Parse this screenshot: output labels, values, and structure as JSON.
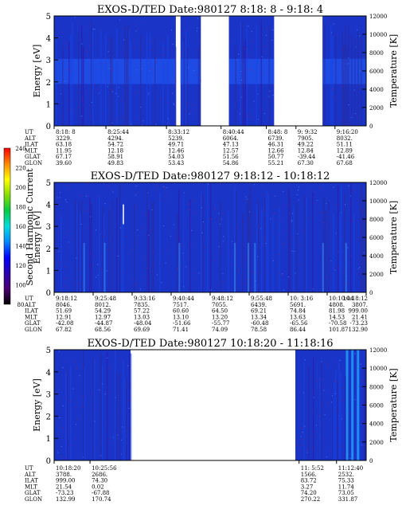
{
  "chart_data": [
    {
      "type": "heatmap",
      "title": "EXOS-D/TED   Date:980127  8:18: 8 - 9:18: 4",
      "ylabel": "Energy [eV]",
      "y2label": "Temperature [K]",
      "ylim": [
        0,
        5
      ],
      "y2lim": [
        0,
        12000
      ],
      "yticks": [
        "0",
        "1",
        "2",
        "3",
        "4",
        "5"
      ],
      "y2ticks": [
        "0",
        "2000",
        "4000",
        "6000",
        "8000",
        "10000",
        "12000"
      ],
      "row_labels": [
        "UT",
        "ALT",
        "ILAT",
        "MLT",
        "GLAT",
        "GLON"
      ],
      "columns": [
        {
          "x": 0.0,
          "values": [
            "8:18: 8",
            "3229.",
            "63.18",
            "11.95",
            "67.17",
            "39.60"
          ]
        },
        {
          "x": 0.166,
          "values": [
            "8:25:44",
            "4294.",
            "54.72",
            "12.18",
            "58.91",
            "49.83"
          ]
        },
        {
          "x": 0.36,
          "values": [
            "8:33:12",
            "5239.",
            "49.71",
            "12.46",
            "54.03",
            "53.43"
          ]
        },
        {
          "x": 0.535,
          "values": [
            "8:40:44",
            "6064.",
            "47.13",
            "12.57",
            "51.56",
            "54.86"
          ]
        },
        {
          "x": 0.68,
          "values": [
            "8:48: 8",
            "6739.",
            "46.31",
            "12.66",
            "50.77",
            "55.21"
          ]
        },
        {
          "x": 0.775,
          "values": [
            "9: 9:32",
            "7905.",
            "49.22",
            "12.84",
            "-39.44",
            "67.30"
          ]
        },
        {
          "x": 0.9,
          "values": [
            "9:16:20",
            "8032.",
            "51.11",
            "12.89",
            "-41.46",
            "67.68"
          ]
        }
      ],
      "data_segments": [
        [
          0.0,
          0.39
        ],
        [
          0.405,
          0.47
        ],
        [
          0.56,
          0.705
        ],
        [
          0.86,
          1.0
        ]
      ]
    },
    {
      "type": "heatmap",
      "title": "EXOS-D/TED   Date:980127  9:18:12 - 10:18:12",
      "ylabel": "Energy [eV]",
      "y2label": "Temperature [K]",
      "ylim": [
        0,
        5
      ],
      "y2lim": [
        0,
        12000
      ],
      "yticks": [
        "0",
        "1",
        "2",
        "3",
        "4",
        "5"
      ],
      "y2ticks": [
        "0",
        "2000",
        "4000",
        "6000",
        "8000",
        "10000",
        "12000"
      ],
      "row_labels": [
        "UT",
        "ALT",
        "ILAT",
        "MLT",
        "GLAT",
        "GLON"
      ],
      "columns": [
        {
          "x": 0.0,
          "values": [
            "9:18:12",
            "8046.",
            "51.69",
            "12.91",
            "-42.08",
            "67.82"
          ]
        },
        {
          "x": 0.125,
          "values": [
            "9:25:48",
            "8012.",
            "54.29",
            "12.97",
            "-44.87",
            "68.56"
          ]
        },
        {
          "x": 0.25,
          "values": [
            "9:33:16",
            "7835.",
            "57.22",
            "13.03",
            "-48.04",
            "69.69"
          ]
        },
        {
          "x": 0.375,
          "values": [
            "9:40:44",
            "7517.",
            "60.60",
            "13.10",
            "-51.66",
            "71.41"
          ]
        },
        {
          "x": 0.5,
          "values": [
            "9:48:12",
            "7055.",
            "64.50",
            "13.20",
            "-55.77",
            "74.09"
          ]
        },
        {
          "x": 0.625,
          "values": [
            "9:55:48",
            "6439.",
            "69.21",
            "13.34",
            "-60.48",
            "78.58"
          ]
        },
        {
          "x": 0.75,
          "values": [
            "10: 3:16",
            "5691.",
            "74.84",
            "13.63",
            "-65.56",
            "86.44"
          ]
        },
        {
          "x": 0.875,
          "values": [
            "10:10:44",
            "4808.",
            "81.98",
            "14.53",
            "-70.58",
            "101.87"
          ]
        },
        {
          "x": 1.0,
          "values": [
            "10:18:12",
            "3807.",
            "999.00",
            "21.41",
            "-73.23",
            "132.90"
          ]
        }
      ],
      "data_segments": [
        [
          0.0,
          1.0
        ]
      ]
    },
    {
      "type": "heatmap",
      "title": "EXOS-D/TED   Date:980127  10:18:20 - 11:18:16",
      "ylabel": "Energy [eV]",
      "y2label": "Temperature [K]",
      "ylim": [
        0,
        5
      ],
      "y2lim": [
        0,
        12000
      ],
      "yticks": [
        "0",
        "1",
        "2",
        "3",
        "4",
        "5"
      ],
      "y2ticks": [
        "0",
        "2000",
        "4000",
        "6000",
        "8000",
        "10000",
        "12000"
      ],
      "row_labels": [
        "UT",
        "ALT",
        "ILAT",
        "MLT",
        "GLAT",
        "GLON"
      ],
      "columns": [
        {
          "x": 0.0,
          "values": [
            "10:18:20",
            "3788.",
            "999.00",
            "21.54",
            "-73.23",
            "132.99"
          ]
        },
        {
          "x": 0.115,
          "values": [
            "10:25:56",
            "2686.",
            "74.30",
            "0.02",
            "-67.88",
            "170.74"
          ]
        },
        {
          "x": 0.785,
          "values": [
            "11: 5:52",
            "1566.",
            "83.72",
            "3.27",
            "74.20",
            "270.22"
          ]
        },
        {
          "x": 0.905,
          "values": [
            "11:12:40",
            "2532.",
            "75.33",
            "11.74",
            "73.05",
            "331.87"
          ]
        }
      ],
      "data_segments": [
        [
          0.0,
          0.245
        ],
        [
          0.773,
          1.0
        ]
      ]
    }
  ],
  "colorbar": {
    "label": "Second Harmonic Current",
    "ticks": [
      "80",
      "100",
      "120",
      "140",
      "160",
      "180",
      "200",
      "220",
      "240"
    ],
    "colors": [
      "#000000",
      "#4a0070",
      "#2a00b0",
      "#0000ff",
      "#0088ff",
      "#00dddd",
      "#00cc44",
      "#88dd00",
      "#ffff00",
      "#ff8800",
      "#ff0000"
    ]
  }
}
